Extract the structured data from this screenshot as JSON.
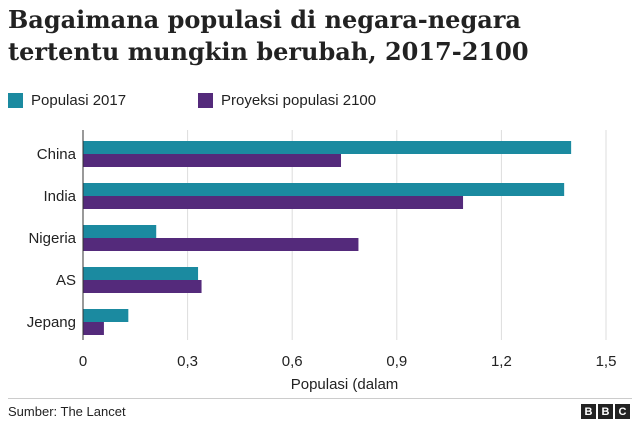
{
  "header": {
    "title": "Bagaimana populasi di negara-negara tertentu mungkin berubah, 2017-2100"
  },
  "footer": {
    "source": "Sumber: The Lancet",
    "logo_letters": [
      "B",
      "B",
      "C"
    ]
  },
  "colors": {
    "series_2017": "#1b8aa0",
    "series_2100": "#542a7b",
    "grid": "#dddddd",
    "axis": "#333333"
  },
  "chart_data": {
    "type": "bar",
    "orientation": "horizontal",
    "categories": [
      "China",
      "India",
      "Nigeria",
      "AS",
      "Jepang"
    ],
    "series": [
      {
        "name": "Populasi 2017",
        "values": [
          1.4,
          1.38,
          0.21,
          0.33,
          0.13
        ]
      },
      {
        "name": "Proyeksi populasi 2100",
        "values": [
          0.74,
          1.09,
          0.79,
          0.34,
          0.06
        ]
      }
    ],
    "xlabel": "Populasi (dalam",
    "xlim": [
      0,
      1.5
    ],
    "xticks": [
      0,
      0.3,
      0.6,
      0.9,
      1.2,
      1.5
    ],
    "xtick_labels": [
      "0",
      "0,3",
      "0,6",
      "0,9",
      "1,2",
      "1,5"
    ],
    "grid": true,
    "legend_position": "top-left"
  }
}
